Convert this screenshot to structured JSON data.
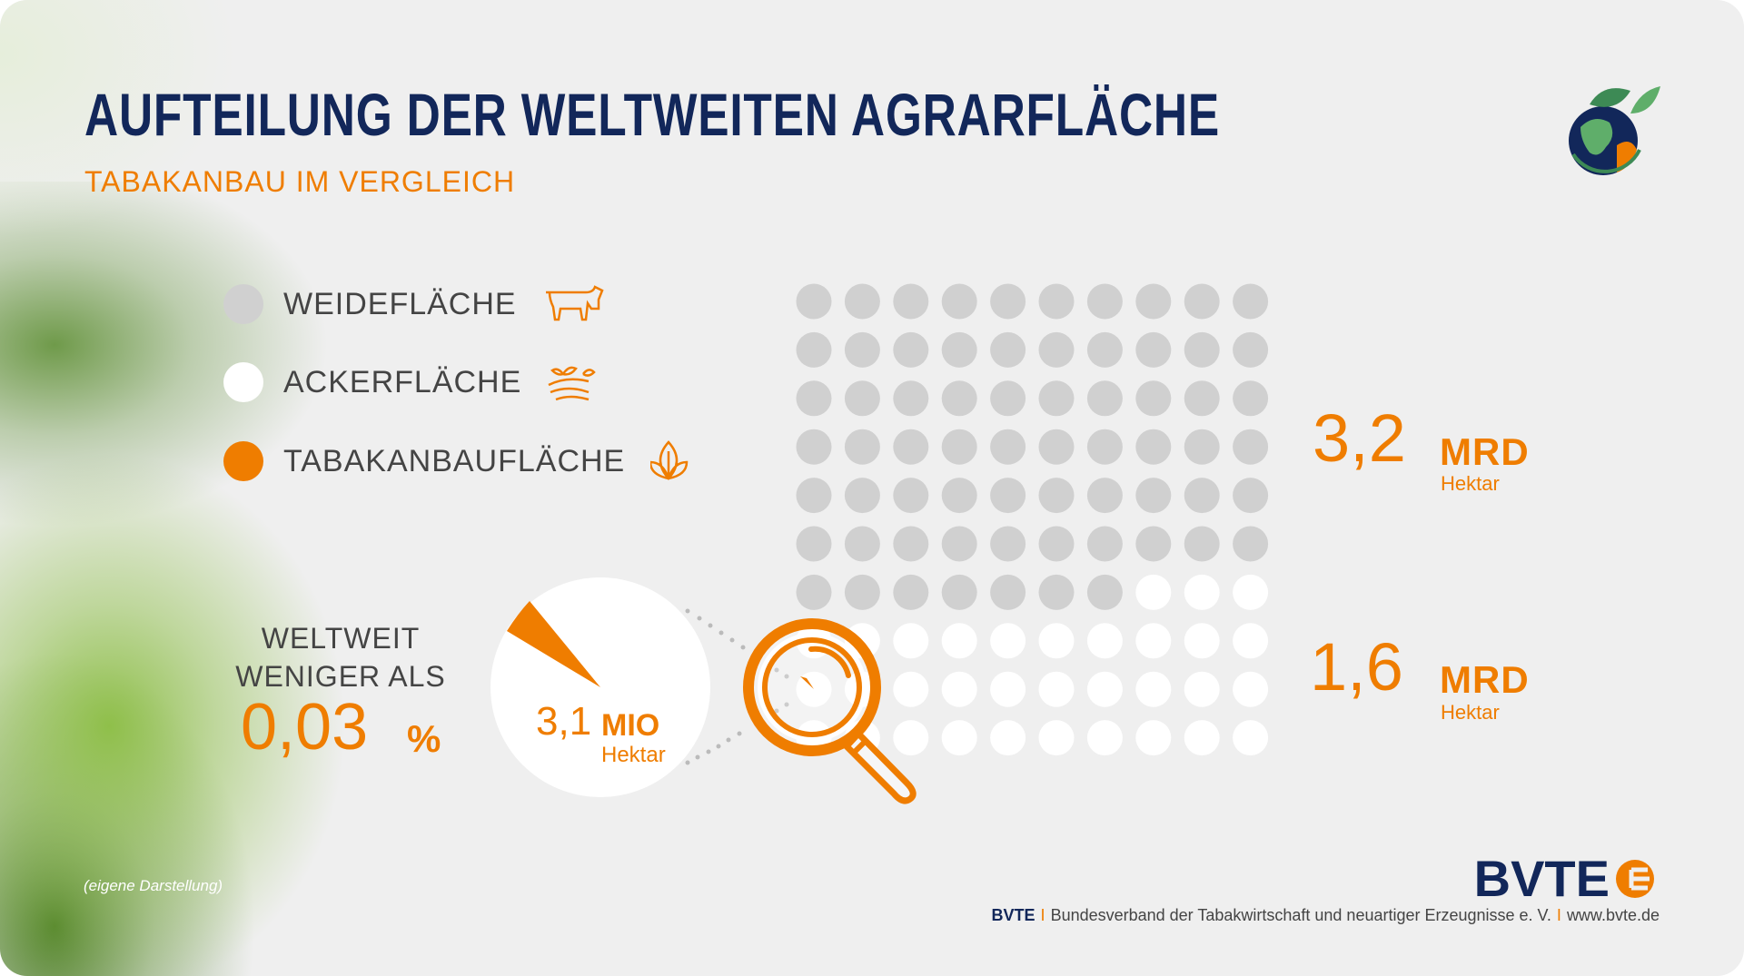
{
  "header": {
    "title": "AUFTEILUNG DER WELTWEITEN AGRARFLÄCHE",
    "subtitle": "TABAKANBAU IM VERGLEICH"
  },
  "legend": [
    {
      "label": "WEIDEFLÄCHE",
      "color": "#d0d0d0",
      "icon": "cow-icon"
    },
    {
      "label": "ACKERFLÄCHE",
      "color": "#ffffff",
      "icon": "field-sprout-icon"
    },
    {
      "label": "TABAKANBAUFLÄCHE",
      "color": "#ef7d00",
      "icon": "leaf-icon"
    }
  ],
  "chart_data": {
    "type": "waffle",
    "total_dots": 100,
    "series": [
      {
        "name": "Weidefläche",
        "dots": 67,
        "color": "#d0d0d0"
      },
      {
        "name": "Ackerfläche",
        "dots": 33,
        "color": "#ffffff"
      }
    ]
  },
  "stats": {
    "weide": {
      "value": "3,2",
      "unit": "MRD",
      "sub": "Hektar"
    },
    "acker": {
      "value": "1,6",
      "unit": "MRD",
      "sub": "Hektar"
    },
    "tabak": {
      "value": "3,1",
      "unit": "MIO",
      "sub": "Hektar"
    }
  },
  "share": {
    "line1": "WELTWEIT",
    "line2": "WENIGER ALS",
    "value": "0,03",
    "unit": "%"
  },
  "source": "(eigene Darstellung)",
  "footer": {
    "org": "BVTE",
    "name": "Bundesverband der Tabakwirtschaft und neuartiger Erzeugnisse e. V.",
    "url": "www.bvte.de",
    "sep": "I"
  },
  "logo": "BVTE",
  "colors": {
    "accent": "#ef7d00",
    "navy": "#12275a",
    "gray": "#d0d0d0"
  }
}
